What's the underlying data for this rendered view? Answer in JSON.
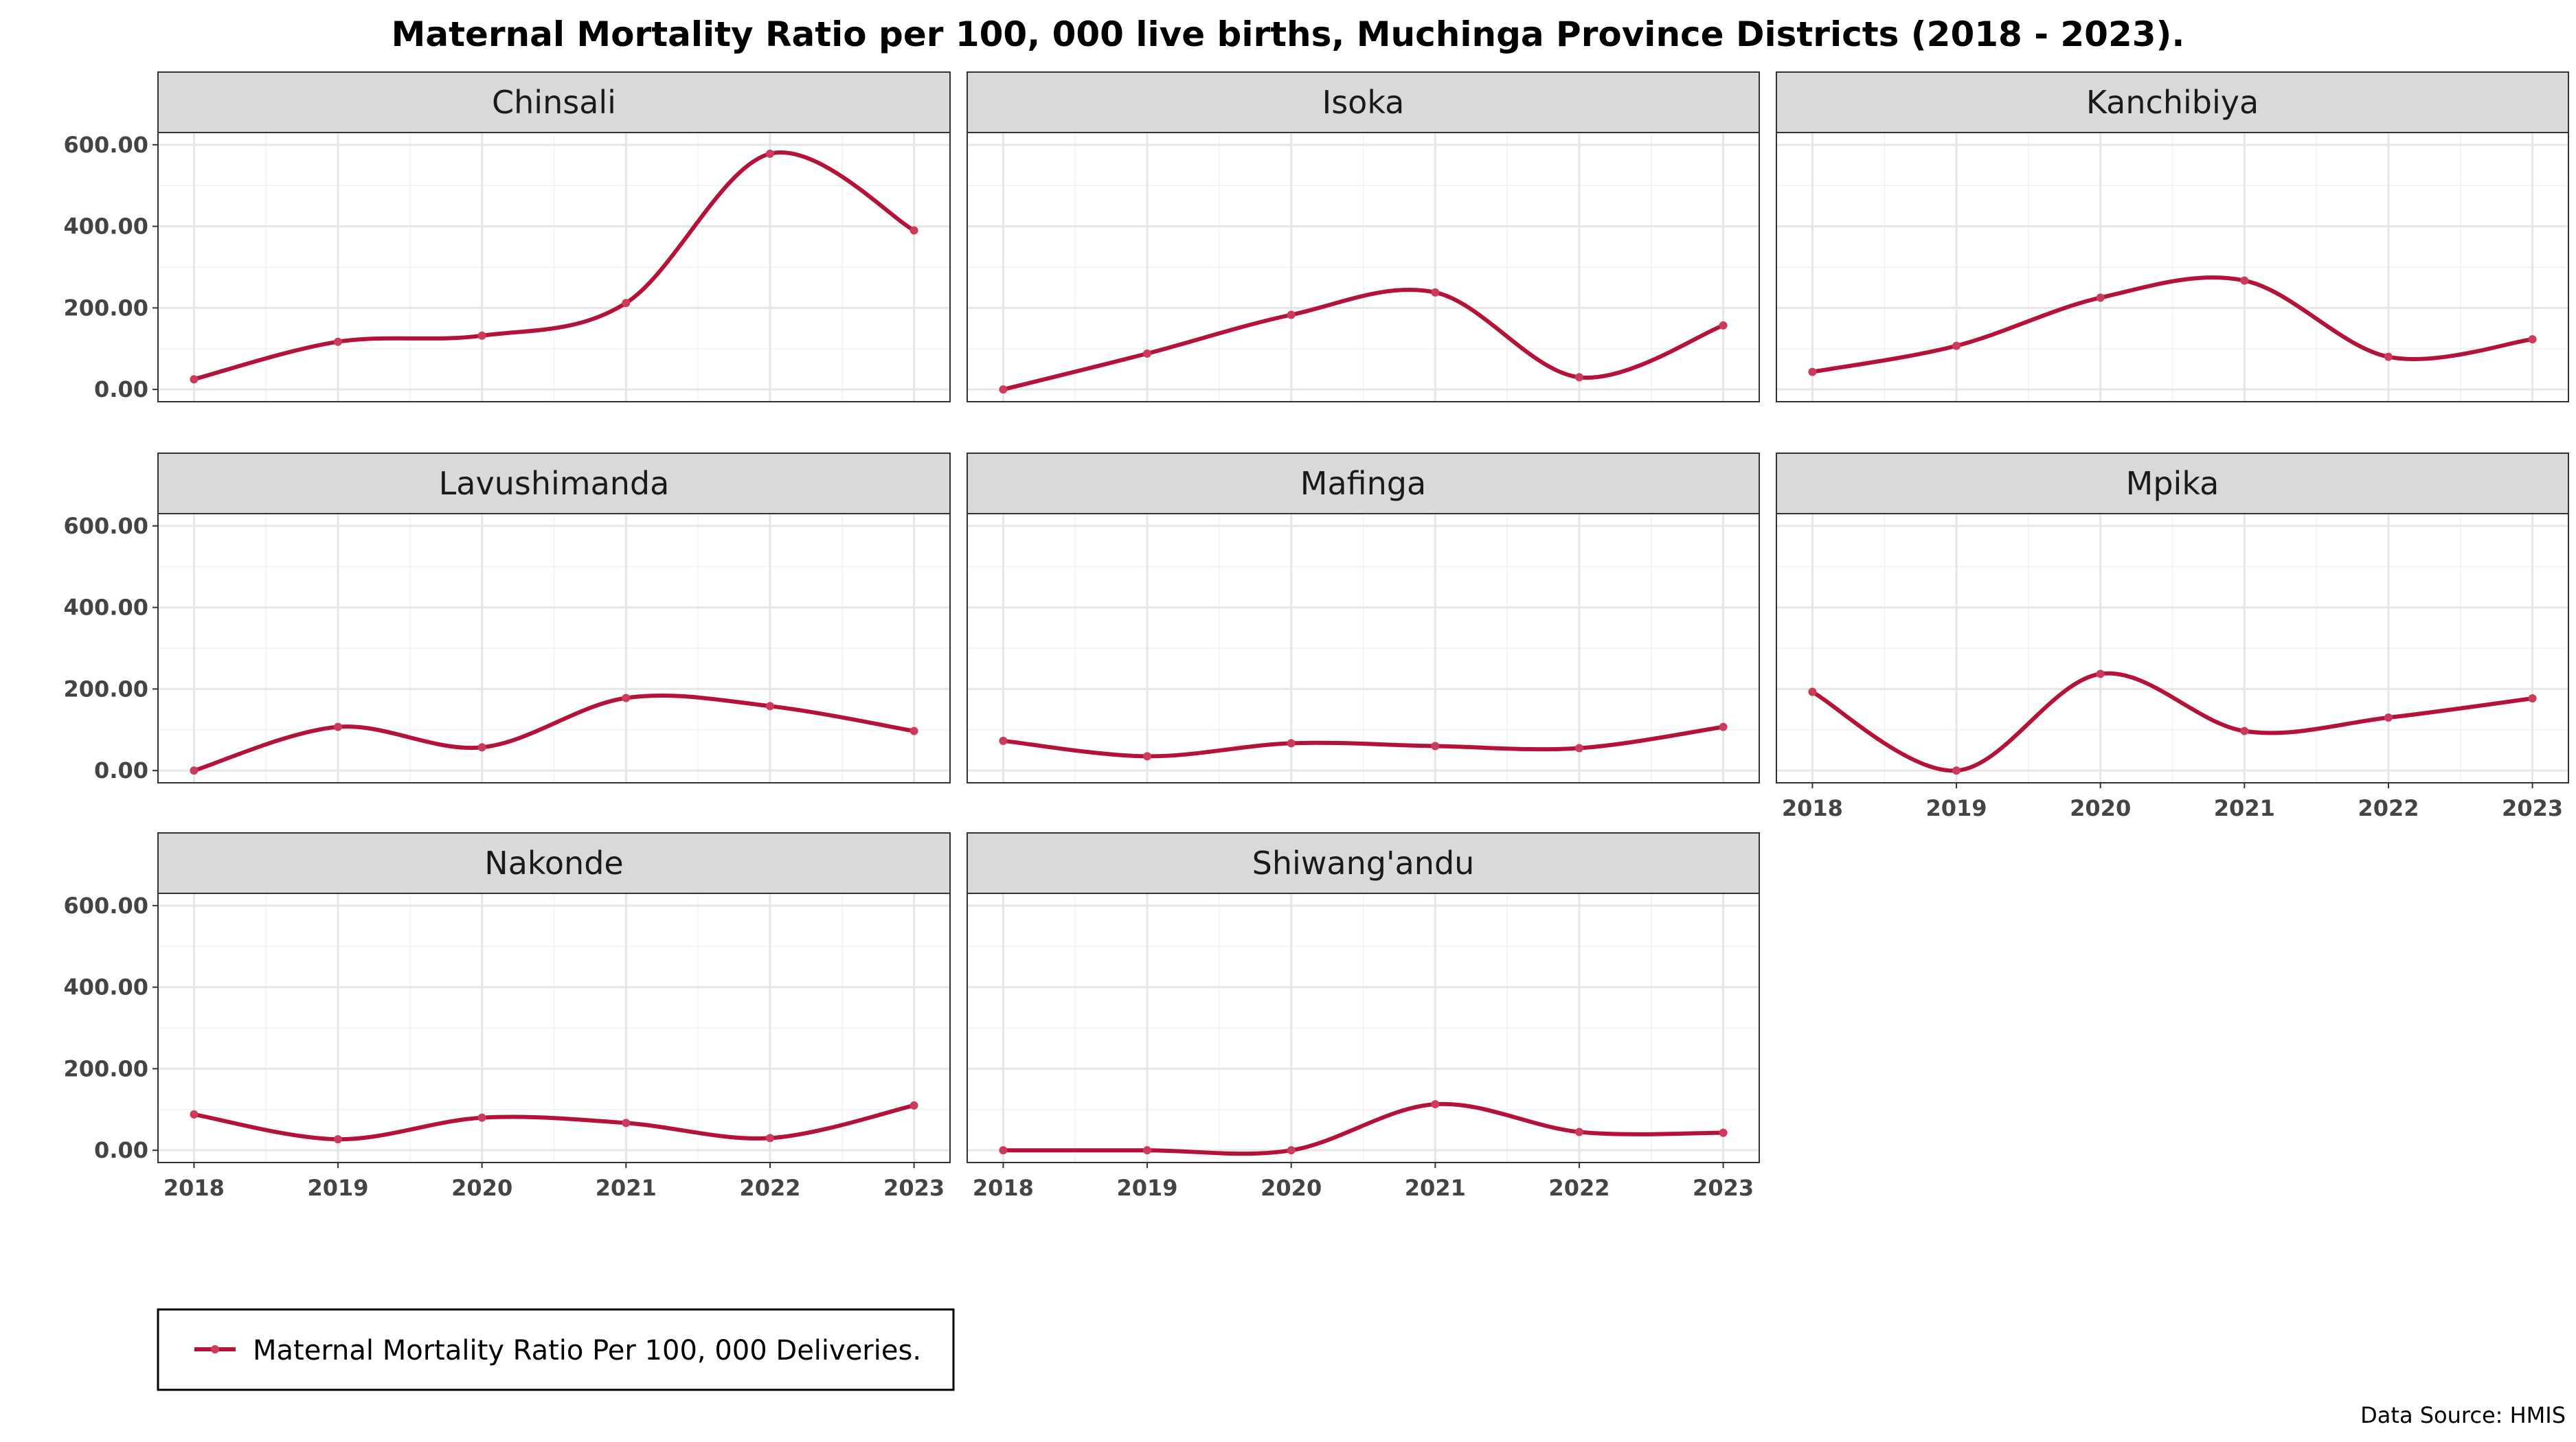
{
  "chart_data": {
    "type": "line",
    "title": "Maternal Mortality Ratio per 100, 000 live births, Muchinga Province Districts (2018 - 2023).",
    "x": [
      2018,
      2019,
      2020,
      2021,
      2022,
      2023
    ],
    "x_tick_labels": [
      "2018",
      "2019",
      "2020",
      "2021",
      "2022",
      "2023"
    ],
    "y_tick_labels": [
      "0.00",
      "200.00",
      "400.00",
      "600.00"
    ],
    "y_ticks": [
      0,
      200,
      400,
      600
    ],
    "ylim": [
      -30,
      630
    ],
    "xlim": [
      2017.75,
      2023.25
    ],
    "grid": true,
    "line_color": "#b5123a",
    "point_color": "#cc3a5c",
    "strip_fill": "#d9d9d9",
    "legend": {
      "position": "bottom-left",
      "label": "Maternal Mortality Ratio Per 100, 000 Deliveries."
    },
    "caption": "Data Source: HMIS",
    "panels": [
      {
        "name": "Chinsali",
        "values": [
          25,
          117,
          132,
          212,
          578,
          390
        ]
      },
      {
        "name": "Isoka",
        "values": [
          0,
          88,
          183,
          238,
          30,
          157
        ]
      },
      {
        "name": "Kanchibiya",
        "values": [
          43,
          107,
          225,
          267,
          80,
          123
        ]
      },
      {
        "name": "Lavushimanda",
        "values": [
          0,
          107,
          57,
          178,
          158,
          97
        ]
      },
      {
        "name": "Mafinga",
        "values": [
          73,
          35,
          67,
          60,
          55,
          107
        ]
      },
      {
        "name": "Mpika",
        "values": [
          193,
          0,
          237,
          97,
          130,
          177
        ]
      },
      {
        "name": "Nakonde",
        "values": [
          88,
          27,
          80,
          67,
          30,
          110
        ]
      },
      {
        "name": "Shiwang'andu",
        "values": [
          0,
          0,
          0,
          113,
          45,
          43
        ]
      }
    ]
  }
}
